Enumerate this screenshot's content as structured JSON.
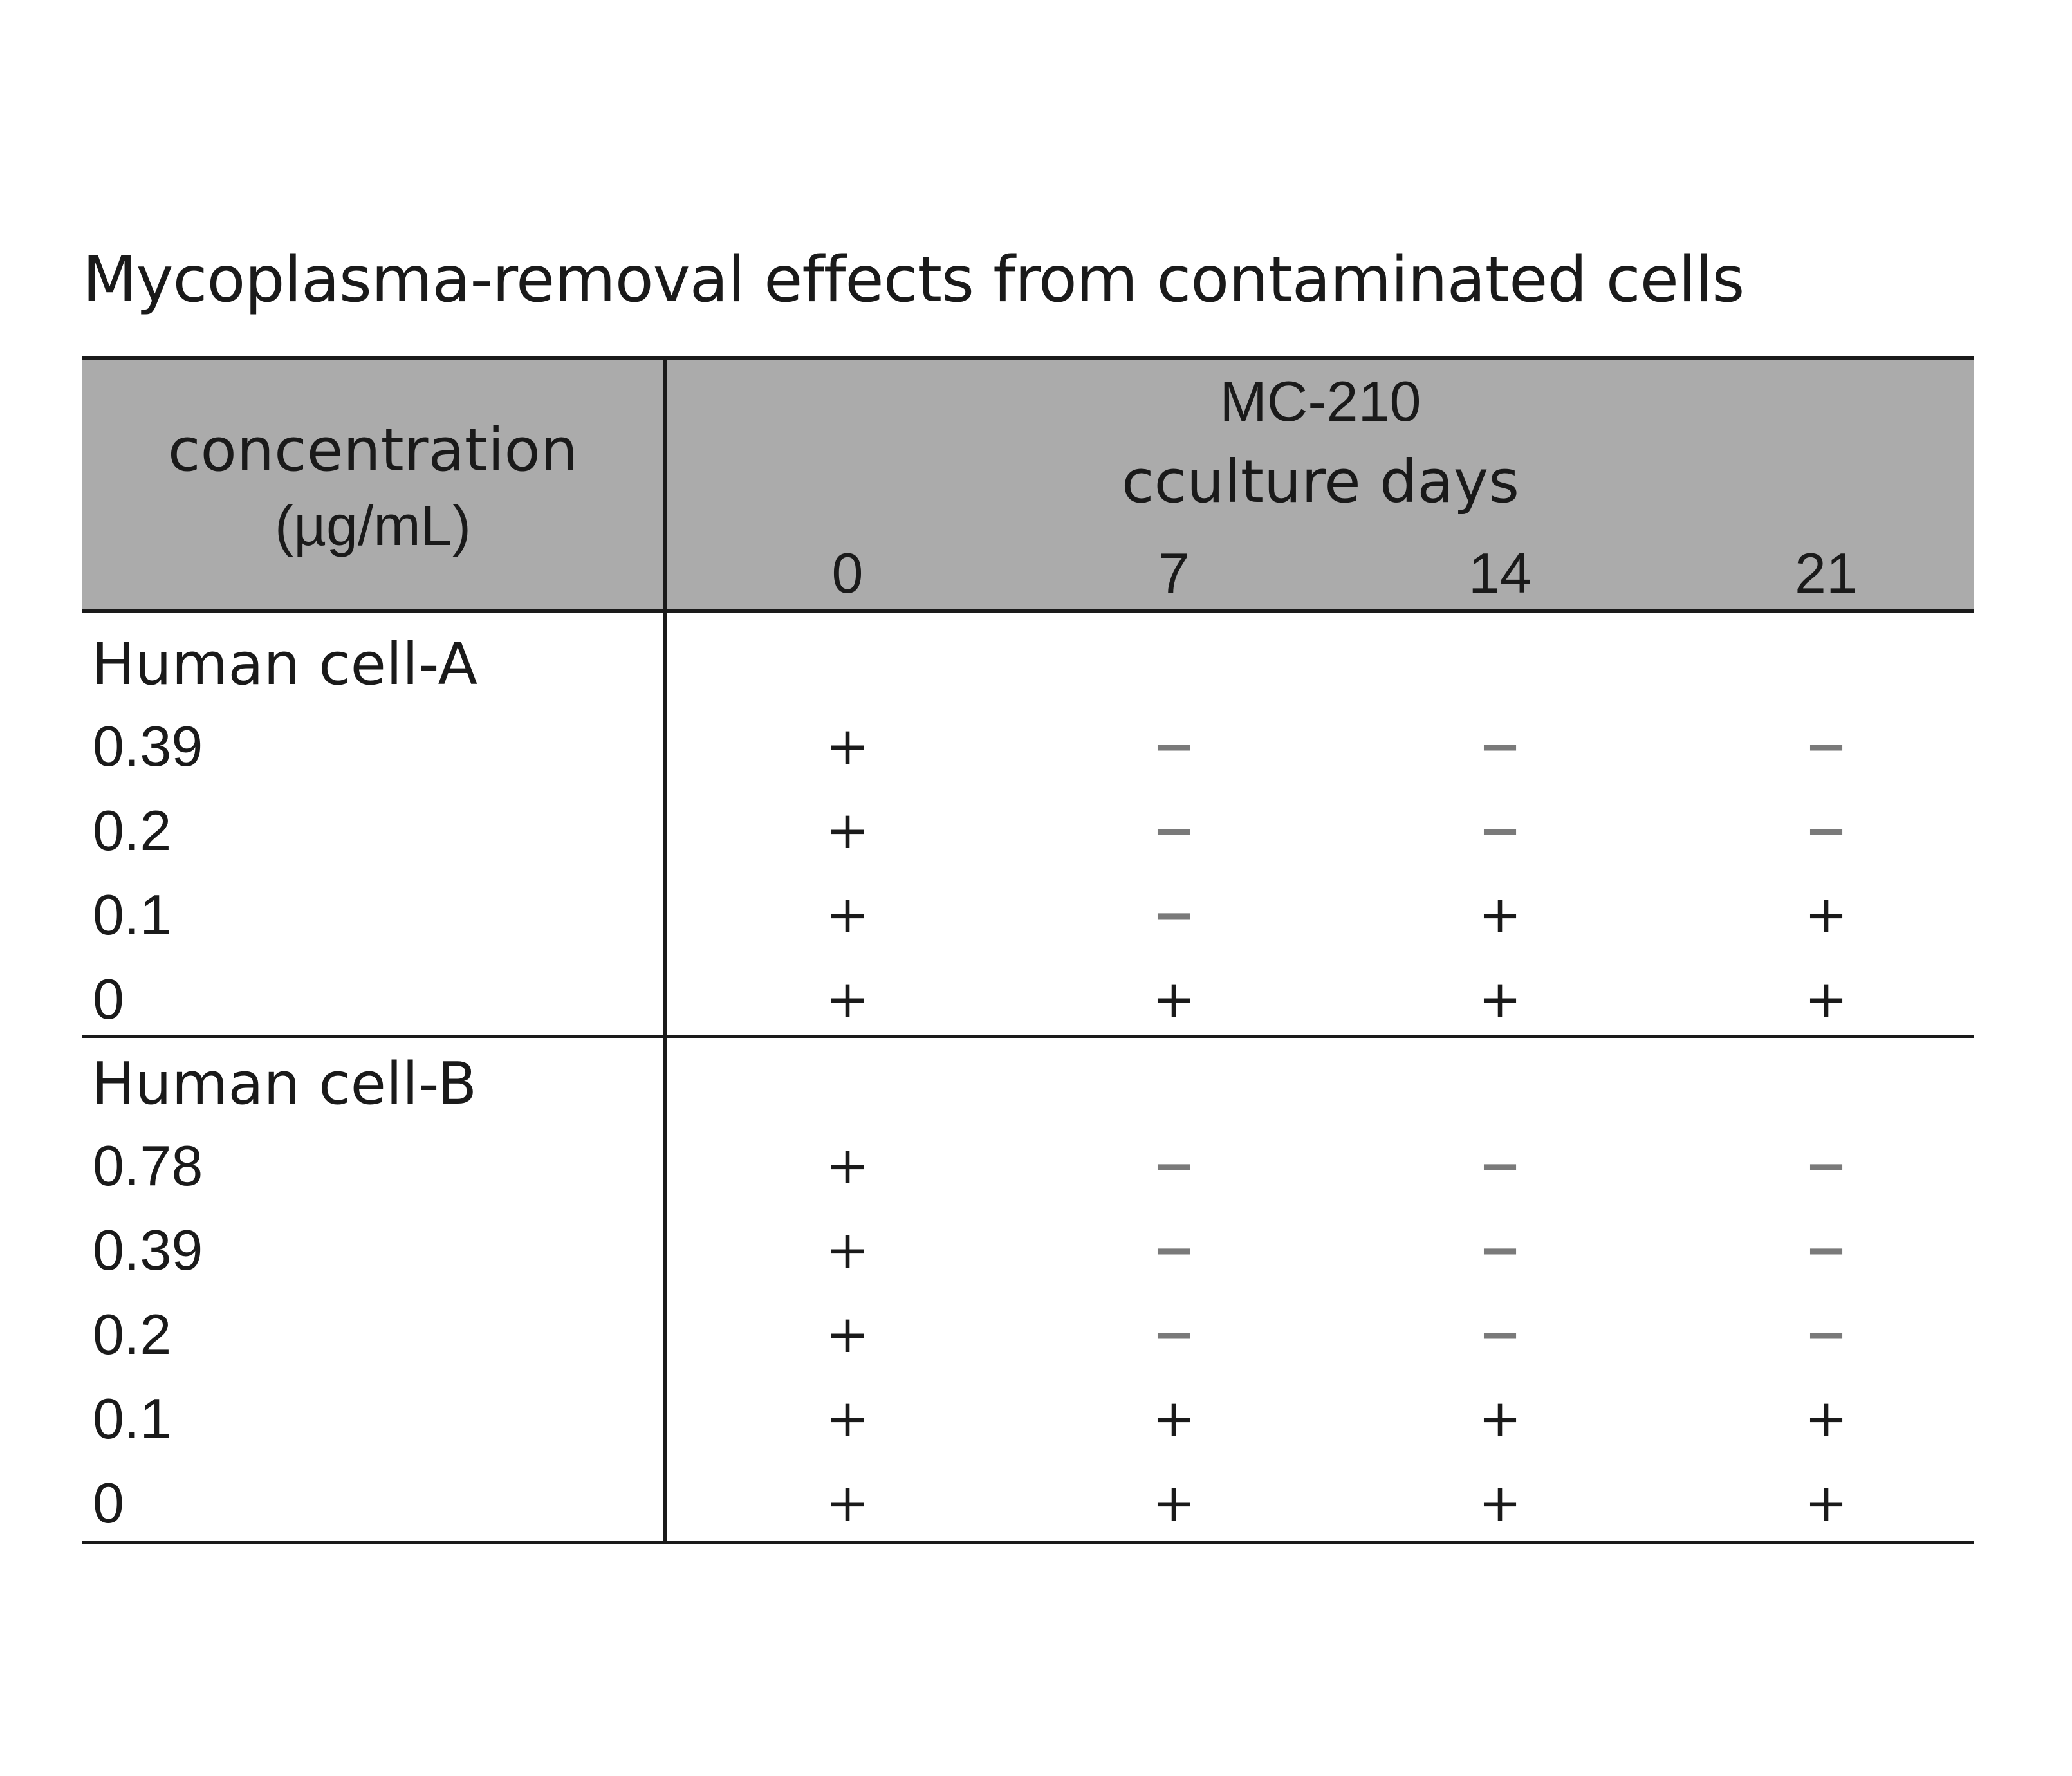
{
  "title": "Mycoplasma-removal effects from contaminated cells",
  "table": {
    "header": {
      "concentration_line1": "concentration",
      "concentration_line2": "(µg/mL)",
      "agent": "MC-210",
      "days_label": "cculture days",
      "days": [
        "0",
        "7",
        "14",
        "21"
      ]
    },
    "groups": [
      {
        "name": "Human cell-A",
        "rows": [
          {
            "concentration": "0.39",
            "results": [
              "+",
              "−",
              "−",
              "−"
            ]
          },
          {
            "concentration": "0.2",
            "results": [
              "+",
              "−",
              "−",
              "−"
            ]
          },
          {
            "concentration": "0.1",
            "results": [
              "+",
              "−",
              "+",
              "+"
            ]
          },
          {
            "concentration": "0",
            "results": [
              "+",
              "+",
              "+",
              "+"
            ]
          }
        ]
      },
      {
        "name": "Human cell-B",
        "rows": [
          {
            "concentration": "0.78",
            "results": [
              "+",
              "−",
              "−",
              "−"
            ]
          },
          {
            "concentration": "0.39",
            "results": [
              "+",
              "−",
              "−",
              "−"
            ]
          },
          {
            "concentration": "0.2",
            "results": [
              "+",
              "−",
              "−",
              "−"
            ]
          },
          {
            "concentration": "0.1",
            "results": [
              "+",
              "+",
              "+",
              "+"
            ]
          },
          {
            "concentration": "0",
            "results": [
              "+",
              "+",
              "+",
              "+"
            ]
          }
        ]
      }
    ]
  },
  "colors": {
    "header_background": "#ababab",
    "text": "#1a1a1a",
    "minus_sign": "#7a7a7a"
  }
}
